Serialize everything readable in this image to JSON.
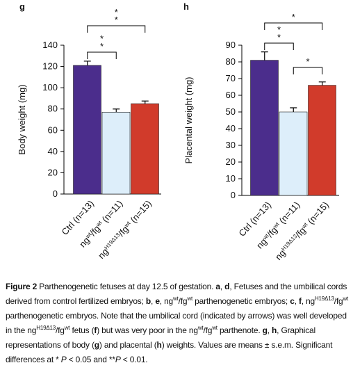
{
  "chart_data": [
    {
      "type": "bar",
      "panel": "g",
      "ylabel": "Body weight (mg)",
      "categories": [
        "Ctrl (n=13)",
        "ng<sup>wt</sup>/fg<sup>wt</sup> (n=11)",
        "ng<sup>H19Δ13</sup>/fg<sup>wt</sup> (n=15)"
      ],
      "values": [
        121,
        77,
        85
      ],
      "errors": [
        4,
        3,
        2.5
      ],
      "colors": [
        "#4b2d8c",
        "#ddeefa",
        "#d13b2b"
      ],
      "ylim": [
        0,
        140
      ],
      "yticks": [
        0,
        20,
        40,
        60,
        80,
        100,
        120,
        140
      ],
      "annotations": [
        {
          "from": 0,
          "to": 2,
          "label": "**"
        },
        {
          "from": 0,
          "to": 1,
          "label": "**"
        }
      ]
    },
    {
      "type": "bar",
      "panel": "h",
      "ylabel": "Placental weight (mg)",
      "categories": [
        "Ctrl (n=13)",
        "ng<sup>wt</sup>/fg<sup>wt</sup> (n=11)",
        "ng<sup>H19Δ13</sup>/fg<sup>wt</sup> (n=15)"
      ],
      "values": [
        81,
        50,
        66
      ],
      "errors": [
        5,
        2.5,
        2
      ],
      "colors": [
        "#4b2d8c",
        "#ddeefa",
        "#d13b2b"
      ],
      "ylim": [
        0,
        90
      ],
      "yticks": [
        0,
        10,
        20,
        30,
        40,
        50,
        60,
        70,
        80,
        90
      ],
      "annotations": [
        {
          "from": 0,
          "to": 2,
          "label": "*"
        },
        {
          "from": 0,
          "to": 1,
          "label": "**"
        },
        {
          "from": 1,
          "to": 2,
          "label": "*"
        }
      ]
    }
  ],
  "caption": "<b>Figure 2</b> Parthenogenetic fetuses at day 12.5 of gestation. <b>a</b>, <b>d</b>, Fetuses and the umbilical cords derived from control fertilized embryos; <b>b</b>, <b>e</b>, ng<sup>wt</sup>/fg<sup>wt</sup> parthenogenetic embryos; <b>c</b>, <b>f</b>, ng<sup>H19Δ13</sup>/fg<sup>wt</sup> parthenogenetic embryos. Note that the umbilical cord (indicated by arrows) was well developed in the ng<sup>H19Δ13</sup>/fg<sup>wt</sup> fetus (<b>f</b>) but was very poor in the ng<sup>wt</sup>/fg<sup>wt</sup> parthenote. <b>g</b>, <b>h</b>, Graphical representations of body (<b>g</b>) and placental (<b>h</b>) weights. Values are means ± s.e.m. Significant differences at * <i>P</i> &lt; 0.05 and **<i>P</i> &lt; 0.01."
}
